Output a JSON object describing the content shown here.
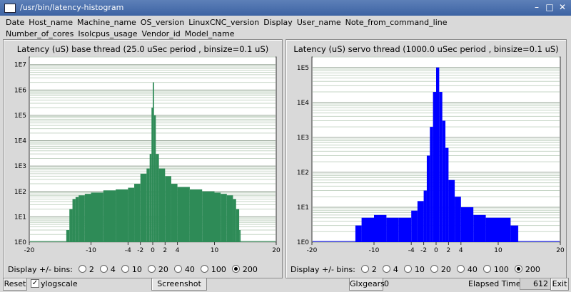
{
  "window": {
    "title": "/usr/bin/latency-histogram"
  },
  "menu": {
    "row1": [
      "Date",
      "Host_name",
      "Machine_name",
      "OS_version",
      "LinuxCNC_version",
      "Display",
      "User_name",
      "Note_from_command_line"
    ],
    "row2": [
      "Number_of_cores",
      "Isolcpus_usage",
      "Vendor_id",
      "Model_name"
    ]
  },
  "panels": [
    {
      "title": "Latency (uS) base thread (25.0 uSec period , binsize=0.1 uS)",
      "color": "#2e8b57"
    },
    {
      "title": "Latency (uS) servo thread (1000.0 uSec period , binsize=0.1 uS)",
      "color": "#0000ff"
    }
  ],
  "bins": {
    "label": "Display +/- bins:",
    "options": [
      "2",
      "4",
      "10",
      "20",
      "40",
      "100",
      "200"
    ],
    "selected": "200"
  },
  "controls": {
    "reset": "Reset",
    "ylogscale": "ylogscale",
    "ylogscale_checked": true,
    "screenshot": "Screenshot",
    "glxgears": "Glxgears",
    "glxgears_value": "0",
    "elapsed_label": "Elapsed Time:",
    "elapsed_value": "612",
    "exit": "Exit"
  },
  "chart_data": [
    {
      "type": "bar",
      "title": "Latency (uS) base thread (25.0 uSec period , binsize=0.1 uS)",
      "x_ticks": [
        "-20",
        "-10",
        "-4",
        "-2",
        "0",
        "2",
        "4",
        "10",
        "20"
      ],
      "y_ticks": [
        "1E0",
        "1E1",
        "1E2",
        "1E3",
        "1E4",
        "1E5",
        "1E6",
        "1E7"
      ],
      "yscale": "log",
      "xlim": [
        -20,
        20
      ],
      "ylim": [
        1,
        20000000
      ],
      "color": "#2e8b57",
      "series": [
        {
          "x": [
            -14.0,
            -13.5,
            -13.0,
            -12.5,
            -12.0,
            -11.0,
            -10.0,
            -8.0,
            -6.0,
            -4.0,
            -3.0,
            -2.0,
            -1.0,
            -0.5,
            -0.2,
            0.0,
            0.2,
            0.5,
            1.0,
            2.0,
            3.0,
            4.0,
            6.0,
            8.0,
            10.0,
            11.0,
            12.0,
            13.0,
            13.5,
            14.0
          ],
          "y": [
            3,
            20,
            50,
            60,
            70,
            80,
            90,
            110,
            120,
            140,
            200,
            500,
            800,
            3000,
            200000,
            2000000,
            100000,
            3000,
            800,
            400,
            200,
            150,
            120,
            100,
            90,
            80,
            70,
            50,
            20,
            3
          ]
        }
      ]
    },
    {
      "type": "bar",
      "title": "Latency (uS) servo thread (1000.0 uSec period , binsize=0.1 uS)",
      "x_ticks": [
        "-20",
        "-10",
        "-4",
        "-2",
        "0",
        "2",
        "4",
        "10",
        "20"
      ],
      "y_ticks": [
        "1E0",
        "1E1",
        "1E2",
        "1E3",
        "1E4",
        "1E5"
      ],
      "yscale": "log",
      "xlim": [
        -20,
        20
      ],
      "ylim": [
        1,
        200000
      ],
      "color": "#0000ff",
      "series": [
        {
          "x": [
            -13.0,
            -12.0,
            -10.0,
            -8.0,
            -6.0,
            -4.0,
            -3.0,
            -2.0,
            -1.5,
            -1.0,
            -0.5,
            0.0,
            0.5,
            1.0,
            1.5,
            2.0,
            3.0,
            4.0,
            6.0,
            8.0,
            10.0,
            12.0,
            13.0
          ],
          "y": [
            3,
            5,
            6,
            5,
            5,
            8,
            15,
            30,
            300,
            2000,
            20000,
            100000,
            20000,
            3000,
            500,
            60,
            20,
            10,
            6,
            5,
            5,
            3,
            3
          ]
        }
      ]
    }
  ]
}
